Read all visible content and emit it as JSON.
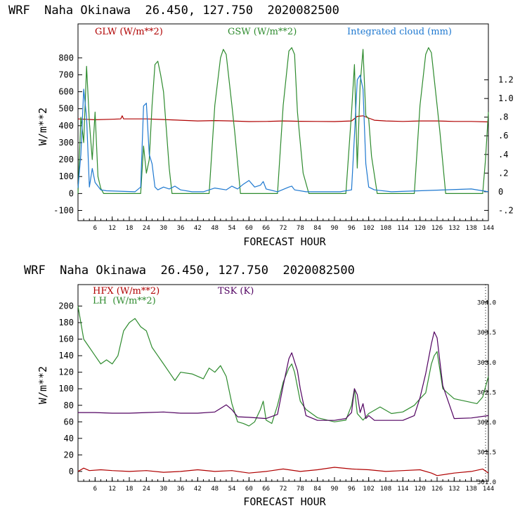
{
  "chart_data": [
    {
      "type": "line",
      "title": "WRF  Naha Okinawa  26.450, 127.750  2020082500",
      "xlabel": "FORECAST HOUR",
      "ylabel": "W/m**2",
      "xlim": [
        0,
        144
      ],
      "ylim": [
        -160,
        1000
      ],
      "y2lim": [
        -0.31,
        1.8
      ],
      "xticks": [
        6,
        12,
        18,
        24,
        30,
        36,
        42,
        48,
        54,
        60,
        66,
        72,
        78,
        84,
        90,
        96,
        102,
        108,
        114,
        120,
        126,
        132,
        138,
        144
      ],
      "yticks": [
        -100,
        0,
        100,
        200,
        300,
        400,
        500,
        600,
        700,
        800
      ],
      "y2ticks": [
        -0.2,
        0,
        0.2,
        0.4,
        0.6,
        0.8,
        1.0,
        1.2
      ],
      "y2ticklabels": [
        "-.2",
        "0",
        ".2",
        ".4",
        ".6",
        ".8",
        "1.0",
        "1.2"
      ],
      "grid": false,
      "legend": "top",
      "series": [
        {
          "name": "GLW (W/m**2)",
          "color": "#b00000",
          "axis": "left",
          "x": [
            0,
            6,
            12,
            15,
            15.5,
            16,
            24,
            30,
            36,
            42,
            48,
            54,
            60,
            66,
            72,
            78,
            84,
            90,
            96,
            98,
            100,
            102,
            104,
            108,
            114,
            120,
            126,
            132,
            138,
            144
          ],
          "y": [
            440,
            435,
            438,
            440,
            458,
            440,
            440,
            436,
            432,
            428,
            430,
            428,
            424,
            425,
            428,
            426,
            425,
            424,
            428,
            455,
            458,
            445,
            432,
            428,
            425,
            428,
            428,
            425,
            425,
            422
          ]
        },
        {
          "name": "GSW (W/m**2)",
          "color": "#2e8b2e",
          "axis": "left",
          "x": [
            0,
            1,
            2,
            3,
            4,
            5,
            6,
            7,
            8,
            9,
            22,
            23,
            24,
            25,
            26,
            27,
            28,
            29,
            30,
            31,
            32,
            33,
            46,
            48,
            50,
            51,
            52,
            54,
            55,
            57,
            70,
            72,
            74,
            75,
            76,
            77,
            78,
            79,
            81,
            94,
            96,
            97,
            98,
            99,
            100,
            101,
            102,
            103,
            105,
            118,
            120,
            122,
            123,
            124,
            126,
            127,
            129,
            142,
            143,
            144
          ],
          "y": [
            0,
            450,
            300,
            750,
            420,
            200,
            480,
            100,
            30,
            0,
            0,
            280,
            120,
            200,
            520,
            760,
            780,
            700,
            600,
            380,
            150,
            0,
            0,
            520,
            800,
            850,
            820,
            520,
            360,
            0,
            0,
            520,
            840,
            860,
            820,
            480,
            300,
            120,
            0,
            0,
            480,
            760,
            150,
            640,
            850,
            460,
            440,
            220,
            0,
            0,
            520,
            820,
            860,
            830,
            520,
            360,
            0,
            0,
            200,
            480
          ]
        },
        {
          "name": "Integrated cloud (mm)",
          "color": "#1e78d0",
          "axis": "right",
          "x": [
            0,
            1,
            2,
            3,
            4,
            5,
            6,
            8,
            10,
            20,
            22,
            23,
            24,
            25,
            26,
            27,
            28,
            30,
            32,
            34,
            36,
            40,
            44,
            48,
            52,
            54,
            56,
            58,
            60,
            62,
            64,
            65,
            66,
            70,
            74,
            75,
            76,
            80,
            92,
            96,
            97,
            98,
            99,
            100,
            101,
            102,
            104,
            110,
            138,
            144
          ],
          "y": [
            0.04,
            0.4,
            1.1,
            0.8,
            0.05,
            0.25,
            0.1,
            0.02,
            0.01,
            0.0,
            0.05,
            0.92,
            0.95,
            0.4,
            0.3,
            0.05,
            0.02,
            0.05,
            0.03,
            0.06,
            0.02,
            0.0,
            0.0,
            0.04,
            0.02,
            0.06,
            0.03,
            0.08,
            0.12,
            0.05,
            0.07,
            0.11,
            0.03,
            0.0,
            0.05,
            0.06,
            0.02,
            0.0,
            0.0,
            0.02,
            0.6,
            1.2,
            1.25,
            1.1,
            0.3,
            0.05,
            0.02,
            0.0,
            0.03,
            0.0
          ]
        }
      ]
    },
    {
      "type": "line",
      "title": "WRF  Naha Okinawa  26.450, 127.750  2020082500",
      "xlabel": "FORECAST HOUR",
      "ylabel": "W/m**2",
      "xlim": [
        0,
        144
      ],
      "ylim": [
        -12,
        226
      ],
      "y2lim": [
        301.0,
        304.29
      ],
      "xticks": [
        6,
        12,
        18,
        24,
        30,
        36,
        42,
        48,
        54,
        60,
        66,
        72,
        78,
        84,
        90,
        96,
        102,
        108,
        114,
        120,
        126,
        132,
        138,
        144
      ],
      "yticks": [
        0,
        20,
        40,
        60,
        80,
        100,
        120,
        140,
        160,
        180,
        200
      ],
      "y2ticks": [
        301.0,
        301.5,
        302.0,
        302.5,
        303.0,
        303.5,
        304.0
      ],
      "y2ticklabels": [
        "301.0",
        "301.5",
        "302.0",
        "302.5",
        "303.0",
        "303.5",
        "304.0"
      ],
      "grid": false,
      "legend": "top-left",
      "series": [
        {
          "name": "HFX (W/m**2)",
          "color": "#b00000",
          "axis": "left",
          "x": [
            0,
            2,
            4,
            8,
            12,
            18,
            24,
            30,
            36,
            42,
            48,
            54,
            60,
            66,
            72,
            78,
            84,
            90,
            96,
            102,
            108,
            114,
            120,
            124,
            126,
            132,
            138,
            142,
            144
          ],
          "y": [
            0,
            4,
            1,
            2,
            1,
            0,
            1,
            -1,
            0,
            2,
            0,
            1,
            -2,
            0,
            3,
            0,
            2,
            5,
            3,
            2,
            0,
            1,
            2,
            -2,
            -5,
            -2,
            0,
            3,
            -2
          ]
        },
        {
          "name": "LH  (W/m**2)",
          "color": "#2e8b2e",
          "axis": "left",
          "x": [
            0,
            2,
            4,
            6,
            8,
            10,
            12,
            14,
            16,
            18,
            20,
            22,
            24,
            26,
            28,
            30,
            32,
            34,
            36,
            40,
            44,
            46,
            48,
            50,
            52,
            54,
            56,
            58,
            60,
            62,
            64,
            65,
            66,
            68,
            70,
            72,
            74,
            75,
            76,
            78,
            80,
            84,
            90,
            94,
            96,
            97,
            98,
            100,
            102,
            106,
            110,
            114,
            118,
            120,
            122,
            124,
            125,
            126,
            128,
            132,
            136,
            140,
            142,
            144
          ],
          "y": [
            200,
            160,
            150,
            140,
            130,
            135,
            130,
            140,
            170,
            180,
            185,
            175,
            170,
            150,
            140,
            130,
            120,
            110,
            120,
            118,
            112,
            125,
            120,
            128,
            115,
            82,
            60,
            58,
            55,
            60,
            75,
            85,
            62,
            58,
            80,
            108,
            125,
            130,
            120,
            85,
            75,
            65,
            60,
            62,
            80,
            100,
            70,
            62,
            70,
            78,
            70,
            72,
            80,
            88,
            95,
            130,
            140,
            145,
            100,
            88,
            85,
            82,
            90,
            115
          ]
        },
        {
          "name": "TSK (K)",
          "color": "#500060",
          "axis": "right",
          "x": [
            0,
            6,
            12,
            18,
            24,
            30,
            36,
            42,
            48,
            50,
            52,
            54,
            56,
            60,
            66,
            70,
            72,
            74,
            75,
            76,
            77,
            78,
            80,
            84,
            90,
            94,
            96,
            97,
            98,
            99,
            100,
            101,
            102,
            104,
            108,
            114,
            118,
            120,
            122,
            124,
            125,
            126,
            128,
            132,
            138,
            144
          ],
          "y": [
            302.15,
            302.15,
            302.14,
            302.14,
            302.15,
            302.16,
            302.14,
            302.14,
            302.16,
            302.22,
            302.28,
            302.2,
            302.08,
            302.07,
            302.05,
            302.12,
            302.6,
            303.05,
            303.15,
            303.0,
            302.85,
            302.55,
            302.1,
            302.02,
            302.02,
            302.05,
            302.15,
            302.55,
            302.45,
            302.15,
            302.3,
            302.05,
            302.1,
            302.02,
            302.02,
            302.02,
            302.1,
            302.4,
            302.8,
            303.3,
            303.5,
            303.4,
            302.6,
            302.05,
            302.06,
            302.1
          ]
        }
      ]
    }
  ]
}
